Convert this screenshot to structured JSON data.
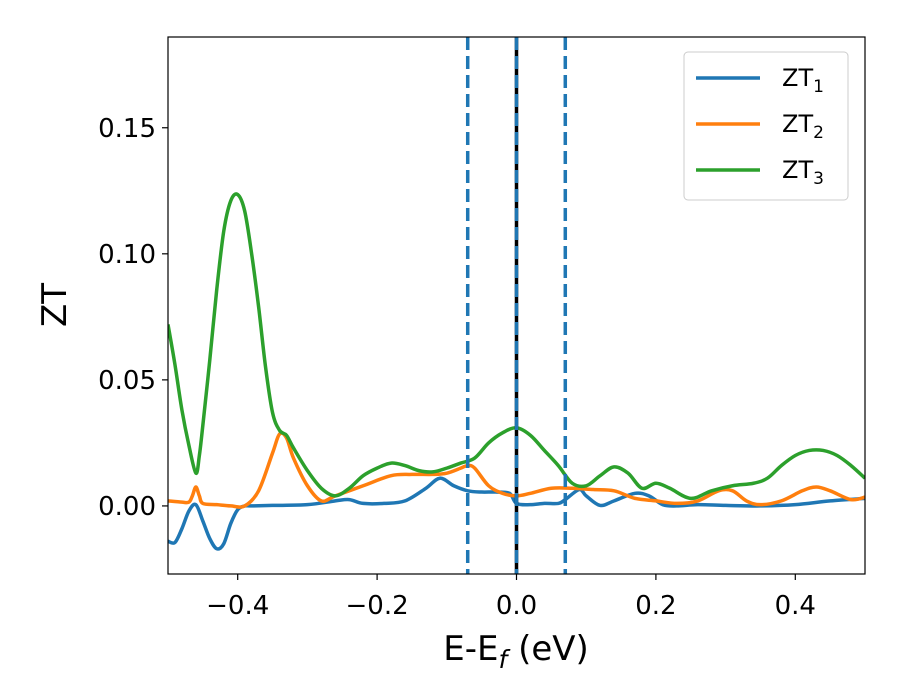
{
  "chart_data": {
    "type": "line",
    "xlabel": {
      "main": "E-E",
      "sub": "f",
      "suffix": " (eV)"
    },
    "ylabel": "ZT",
    "xlim": [
      -0.5,
      0.5
    ],
    "ylim": [
      -0.027,
      0.186
    ],
    "xticks": [
      -0.4,
      -0.2,
      0.0,
      0.2,
      0.4
    ],
    "xtick_labels": [
      "−0.4",
      "−0.2",
      "0.0",
      "0.2",
      "0.4"
    ],
    "yticks": [
      0.0,
      0.05,
      0.1,
      0.15
    ],
    "ytick_labels": [
      "0.00",
      "0.05",
      "0.10",
      "0.15"
    ],
    "grid": false,
    "legend_position": "top-right",
    "vlines": [
      {
        "x": -0.07,
        "style": "dashed",
        "color": "#1f77b4"
      },
      {
        "x": 0.07,
        "style": "dashed",
        "color": "#1f77b4"
      },
      {
        "x": 0.0,
        "style": "solid",
        "color": "#000000"
      },
      {
        "x": 0.0,
        "style": "dashed",
        "color": "#1f77b4"
      }
    ],
    "series": [
      {
        "name": "ZT",
        "sub": "1",
        "color": "#1f77b4",
        "x": [
          -0.5,
          -0.49,
          -0.48,
          -0.47,
          -0.46,
          -0.45,
          -0.44,
          -0.43,
          -0.42,
          -0.41,
          -0.4,
          -0.39,
          -0.38,
          -0.35,
          -0.3,
          -0.26,
          -0.24,
          -0.22,
          -0.19,
          -0.16,
          -0.13,
          -0.11,
          -0.09,
          -0.07,
          -0.05,
          -0.03,
          -0.01,
          0.0,
          0.02,
          0.04,
          0.06,
          0.07,
          0.09,
          0.1,
          0.12,
          0.14,
          0.17,
          0.19,
          0.21,
          0.23,
          0.26,
          0.3,
          0.35,
          0.4,
          0.45,
          0.5
        ],
        "values": [
          -0.014,
          -0.0145,
          -0.009,
          -0.002,
          0.0005,
          -0.006,
          -0.013,
          -0.017,
          -0.015,
          -0.007,
          -0.0015,
          0.0,
          0.0,
          0.0002,
          0.0005,
          0.002,
          0.0025,
          0.001,
          0.001,
          0.002,
          0.007,
          0.011,
          0.008,
          0.006,
          0.0055,
          0.0055,
          0.005,
          0.001,
          0.0005,
          0.001,
          0.001,
          0.0025,
          0.0065,
          0.004,
          0.0002,
          0.002,
          0.005,
          0.004,
          0.0005,
          0.0,
          0.0005,
          0.0002,
          0.0,
          0.0005,
          0.002,
          0.003
        ]
      },
      {
        "name": "ZT",
        "sub": "2",
        "color": "#ff7f0e",
        "x": [
          -0.5,
          -0.48,
          -0.47,
          -0.465,
          -0.46,
          -0.455,
          -0.45,
          -0.43,
          -0.41,
          -0.39,
          -0.37,
          -0.35,
          -0.34,
          -0.33,
          -0.32,
          -0.3,
          -0.28,
          -0.26,
          -0.22,
          -0.18,
          -0.15,
          -0.12,
          -0.1,
          -0.08,
          -0.07,
          -0.06,
          -0.04,
          -0.02,
          0.0,
          0.02,
          0.05,
          0.08,
          0.11,
          0.14,
          0.17,
          0.2,
          0.23,
          0.26,
          0.29,
          0.31,
          0.33,
          0.35,
          0.38,
          0.41,
          0.43,
          0.45,
          0.48,
          0.5
        ],
        "values": [
          0.002,
          0.0015,
          0.0015,
          0.004,
          0.0075,
          0.004,
          0.001,
          0.0005,
          0.0,
          0.0,
          0.006,
          0.021,
          0.0285,
          0.027,
          0.019,
          0.008,
          0.002,
          0.004,
          0.008,
          0.012,
          0.0125,
          0.0125,
          0.013,
          0.015,
          0.016,
          0.015,
          0.008,
          0.005,
          0.004,
          0.005,
          0.007,
          0.007,
          0.0065,
          0.006,
          0.003,
          0.002,
          0.001,
          0.002,
          0.006,
          0.006,
          0.002,
          0.0005,
          0.002,
          0.006,
          0.0075,
          0.006,
          0.0025,
          0.0035
        ]
      },
      {
        "name": "ZT",
        "sub": "3",
        "color": "#2ca02c",
        "x": [
          -0.5,
          -0.49,
          -0.48,
          -0.47,
          -0.46,
          -0.455,
          -0.45,
          -0.44,
          -0.43,
          -0.42,
          -0.41,
          -0.4,
          -0.39,
          -0.38,
          -0.37,
          -0.36,
          -0.35,
          -0.34,
          -0.33,
          -0.32,
          -0.3,
          -0.28,
          -0.26,
          -0.24,
          -0.22,
          -0.2,
          -0.18,
          -0.16,
          -0.14,
          -0.12,
          -0.1,
          -0.08,
          -0.06,
          -0.04,
          -0.02,
          0.0,
          0.02,
          0.04,
          0.06,
          0.08,
          0.1,
          0.12,
          0.14,
          0.16,
          0.18,
          0.2,
          0.22,
          0.25,
          0.28,
          0.31,
          0.34,
          0.36,
          0.38,
          0.4,
          0.42,
          0.44,
          0.46,
          0.48,
          0.5
        ],
        "values": [
          0.072,
          0.056,
          0.038,
          0.024,
          0.013,
          0.02,
          0.032,
          0.058,
          0.086,
          0.109,
          0.121,
          0.1235,
          0.117,
          0.1,
          0.079,
          0.055,
          0.037,
          0.03,
          0.028,
          0.023,
          0.014,
          0.007,
          0.004,
          0.007,
          0.012,
          0.015,
          0.017,
          0.016,
          0.014,
          0.0135,
          0.015,
          0.017,
          0.019,
          0.025,
          0.029,
          0.031,
          0.028,
          0.022,
          0.016,
          0.009,
          0.008,
          0.012,
          0.0155,
          0.013,
          0.007,
          0.009,
          0.007,
          0.003,
          0.006,
          0.008,
          0.009,
          0.011,
          0.016,
          0.02,
          0.022,
          0.022,
          0.02,
          0.016,
          0.011
        ]
      }
    ]
  }
}
